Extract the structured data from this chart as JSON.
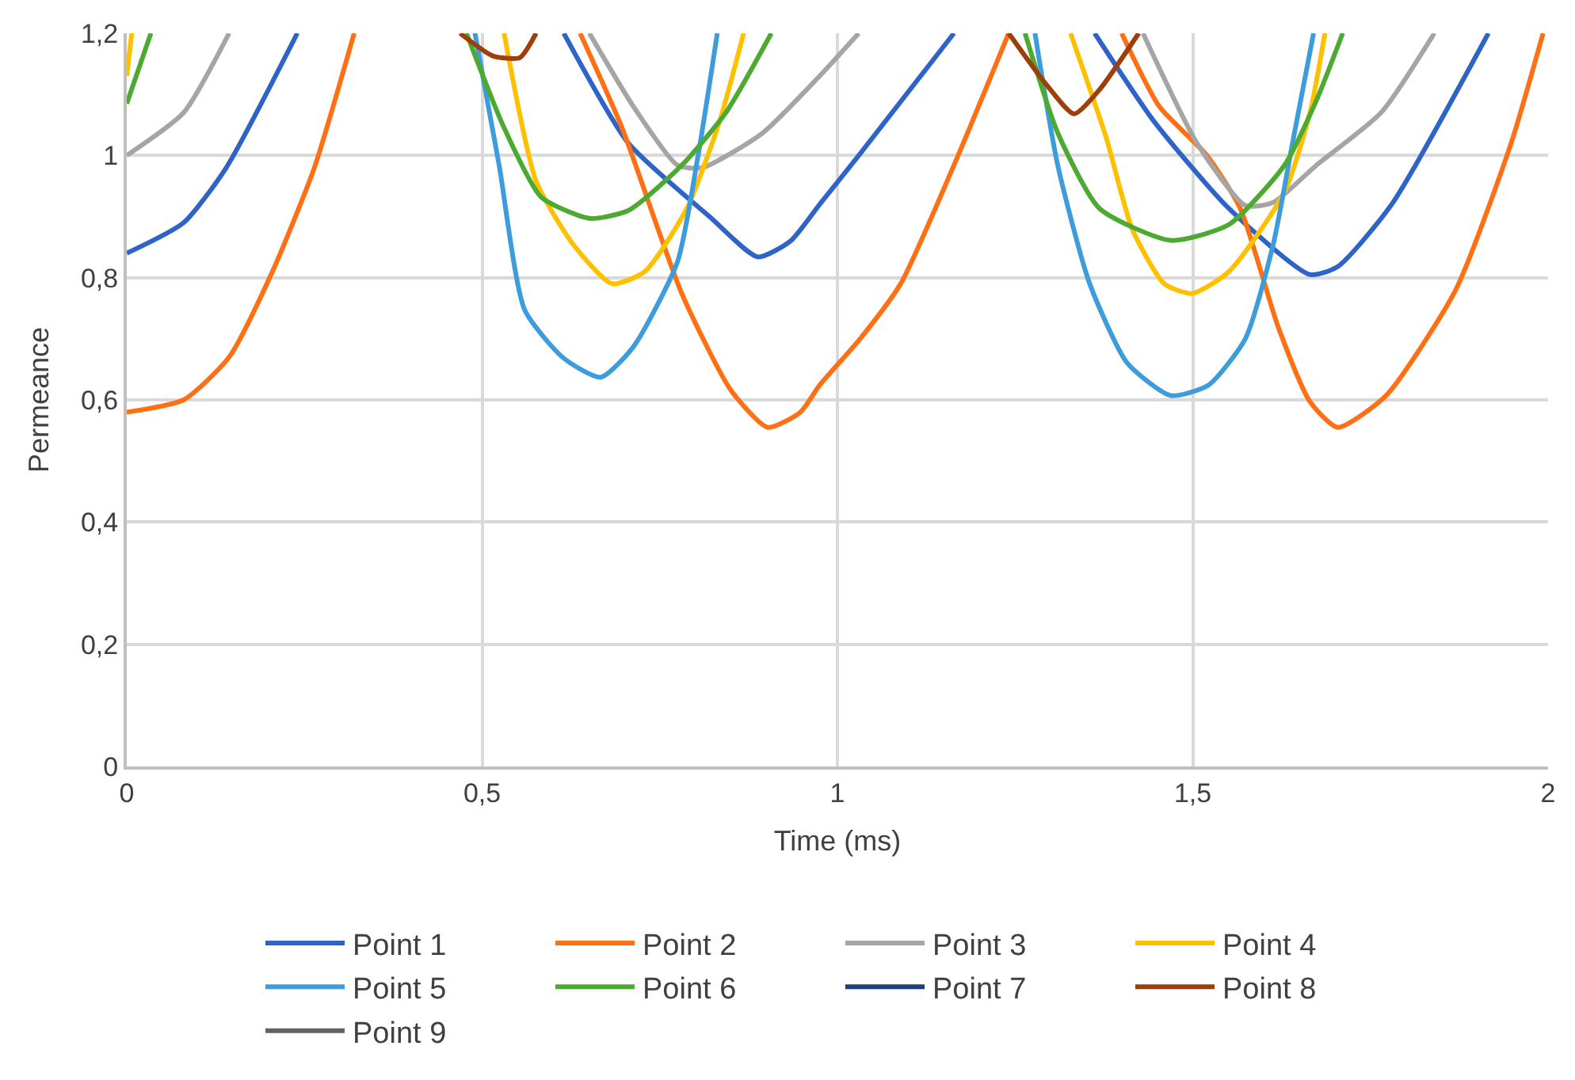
{
  "chart_data": {
    "type": "line",
    "xlabel": "Time (ms)",
    "ylabel": "Permeance",
    "xlim": [
      0,
      2
    ],
    "ylim": [
      0,
      1.2
    ],
    "xticks": [
      0,
      {
        "value": 0.5,
        "label": "0,5"
      },
      1,
      {
        "value": 1.5,
        "label": "1,5"
      },
      2
    ],
    "yticks": [
      0,
      {
        "value": 0.2,
        "label": "0,2"
      },
      {
        "value": 0.4,
        "label": "0,4"
      },
      {
        "value": 0.6,
        "label": "0,6"
      },
      {
        "value": 0.8,
        "label": "0,8"
      },
      1,
      {
        "value": 1.2,
        "label": "1,2"
      }
    ],
    "grid": true,
    "legend": "bottom",
    "marker": "none",
    "line_style": "solid",
    "series": [
      {
        "name": "Point 1",
        "color": "#2e64c8",
        "x": [
          0,
          0.08,
          0.14,
          0.24,
          0.242,
          0.615,
          0.706,
          0.82,
          0.888,
          0.934,
          0.975,
          1.03,
          1.164,
          1.166,
          1.362,
          1.446,
          1.551,
          1.665,
          1.704,
          1.78,
          1.916
        ],
        "values": [
          0.84,
          0.89,
          0.98,
          1.2,
          null,
          1.2,
          1.02,
          0.9,
          0.834,
          0.86,
          0.92,
          1.0,
          1.2,
          null,
          1.2,
          1.055,
          0.913,
          0.805,
          0.818,
          0.92,
          1.2
        ]
      },
      {
        "name": "Point 2",
        "color": "#ff7014",
        "x": [
          0,
          0.08,
          0.144,
          0.205,
          0.264,
          0.32,
          0.322,
          0.638,
          0.697,
          0.781,
          0.85,
          0.902,
          0.948,
          0.975,
          1.032,
          1.089,
          1.164,
          1.241,
          1.243,
          1.4,
          1.453,
          1.52,
          1.567,
          1.62,
          1.665,
          1.704,
          1.772,
          1.87,
          1.948,
          1.993
        ],
        "values": [
          0.58,
          0.6,
          0.67,
          0.81,
          0.98,
          1.2,
          null,
          1.2,
          1.045,
          0.774,
          0.616,
          0.555,
          0.58,
          0.624,
          0.7,
          0.79,
          0.984,
          1.2,
          null,
          1.2,
          1.08,
          1.0,
          0.913,
          0.72,
          0.597,
          0.555,
          0.607,
          0.78,
          1.02,
          1.2
        ]
      },
      {
        "name": "Point 3",
        "color": "#a5a5a5",
        "x": [
          0,
          0.08,
          0.144,
          0.146,
          0.651,
          0.713,
          0.775,
          0.81,
          0.895,
          0.975,
          1.03,
          1.032,
          1.43,
          1.506,
          1.574,
          1.613,
          1.674,
          1.765,
          1.84
        ],
        "values": [
          1.0,
          1.07,
          1.2,
          null,
          1.2,
          1.08,
          0.984,
          0.98,
          1.037,
          1.13,
          1.2,
          null,
          1.2,
          1.02,
          0.918,
          0.923,
          0.984,
          1.07,
          1.2
        ]
      },
      {
        "name": "Point 4",
        "color": "#ffc000",
        "x": [
          0,
          0.007,
          0.009,
          0.531,
          0.576,
          0.629,
          0.683,
          0.729,
          0.788,
          0.834,
          0.868,
          0.87,
          1.328,
          1.378,
          1.415,
          1.46,
          1.499,
          1.551,
          1.629,
          1.665,
          1.686
        ],
        "values": [
          1.13,
          1.2,
          null,
          1.2,
          0.958,
          0.853,
          0.79,
          0.81,
          0.913,
          1.055,
          1.2,
          null,
          1.2,
          1.03,
          0.879,
          0.79,
          0.774,
          0.81,
          0.94,
          1.07,
          1.2
        ]
      },
      {
        "name": "Point 5",
        "color": "#3d9ddc",
        "x": [
          0.49,
          0.524,
          0.56,
          0.615,
          0.667,
          0.713,
          0.775,
          0.804,
          0.831,
          0.833,
          1.278,
          1.31,
          1.355,
          1.408,
          1.469,
          1.522,
          1.574,
          1.613,
          1.642,
          1.67
        ],
        "values": [
          1.2,
          0.984,
          0.747,
          0.668,
          0.637,
          0.687,
          0.826,
          1.0,
          1.2,
          null,
          1.2,
          0.984,
          0.79,
          0.66,
          0.607,
          0.624,
          0.7,
          0.853,
          1.03,
          1.2
        ]
      },
      {
        "name": "Point 6",
        "color": "#4caa32",
        "x": [
          0,
          0.034,
          0.036,
          0.478,
          0.531,
          0.583,
          0.651,
          0.706,
          0.781,
          0.843,
          0.907,
          0.909,
          1.264,
          1.31,
          1.369,
          1.469,
          1.551,
          1.629,
          1.674,
          1.711
        ],
        "values": [
          1.085,
          1.2,
          null,
          1.2,
          1.045,
          0.932,
          0.897,
          0.91,
          0.984,
          1.07,
          1.2,
          null,
          1.2,
          1.037,
          0.913,
          0.861,
          0.887,
          0.984,
          1.09,
          1.2
        ]
      },
      {
        "name": "Point 7",
        "color": "#1f3f7a"
      },
      {
        "name": "Point 8",
        "color": "#9e3f0a",
        "x": [
          0.469,
          0.515,
          0.553,
          0.576,
          0.578,
          1.241,
          1.294,
          1.333,
          1.369,
          1.424
        ],
        "values": [
          1.2,
          1.163,
          1.16,
          1.2,
          null,
          1.2,
          1.116,
          1.068,
          1.108,
          1.2
        ]
      },
      {
        "name": "Point 9",
        "color": "#636363"
      }
    ]
  }
}
